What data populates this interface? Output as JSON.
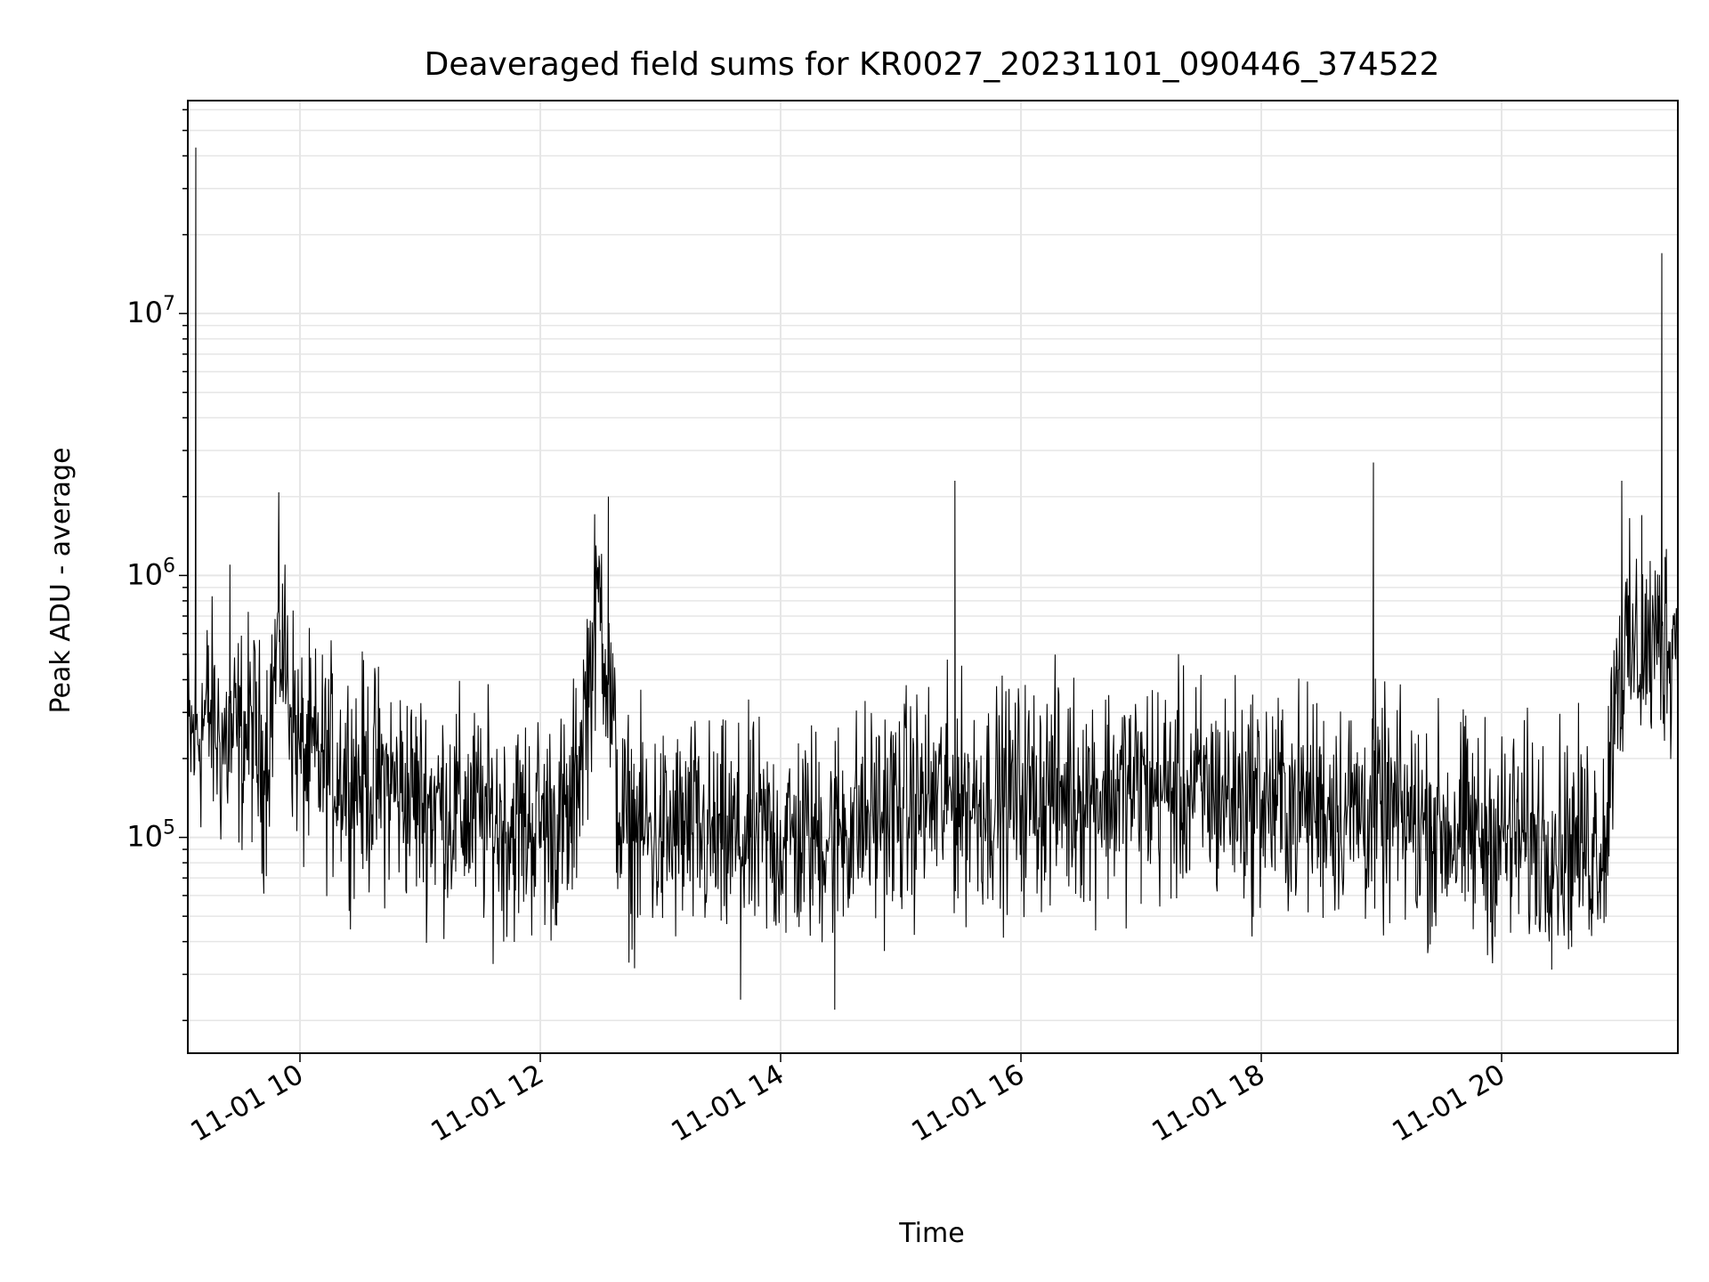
{
  "chart_data": {
    "type": "line",
    "title": "Deaveraged field sums for KR0027_20231101_090446_374522",
    "xlabel": "Time",
    "ylabel": "Peak ADU - average",
    "x_scale": "time",
    "y_scale": "log",
    "xlim": [
      "2023-11-01T09:04:00",
      "2023-11-01T21:28:00"
    ],
    "ylim": [
      15000,
      65000000
    ],
    "x_ticks": [
      "2023-11-01T10:00",
      "2023-11-01T12:00",
      "2023-11-01T14:00",
      "2023-11-01T16:00",
      "2023-11-01T18:00",
      "2023-11-01T20:00"
    ],
    "x_tick_labels": [
      "11-01 10",
      "11-01 12",
      "11-01 14",
      "11-01 16",
      "11-01 18",
      "11-01 20"
    ],
    "y_ticks": [
      100000,
      1000000,
      10000000
    ],
    "y_tick_labels": [
      {
        "base": "10",
        "exp": "5"
      },
      {
        "base": "10",
        "exp": "6"
      },
      {
        "base": "10",
        "exp": "7"
      }
    ],
    "grid": true,
    "line_color": "#000000",
    "grid_color": "#e6e6e6",
    "series": [
      {
        "x": [
          "2023-11-01T09:04",
          "2023-11-01T09:08",
          "2023-11-01T09:12",
          "2023-11-01T09:15",
          "2023-11-01T09:20",
          "2023-11-01T09:25",
          "2023-11-01T09:30",
          "2023-11-01T09:36",
          "2023-11-01T09:42",
          "2023-11-01T09:50",
          "2023-11-01T10:00",
          "2023-11-01T10:15",
          "2023-11-01T10:30",
          "2023-11-01T10:45",
          "2023-11-01T11:00",
          "2023-11-01T11:15",
          "2023-11-01T11:30",
          "2023-11-01T11:45",
          "2023-11-01T12:00",
          "2023-11-01T12:15",
          "2023-11-01T12:30",
          "2023-11-01T12:34",
          "2023-11-01T12:40",
          "2023-11-01T13:00",
          "2023-11-01T13:15",
          "2023-11-01T13:30",
          "2023-11-01T13:40",
          "2023-11-01T13:45",
          "2023-11-01T14:00",
          "2023-11-01T14:15",
          "2023-11-01T14:27",
          "2023-11-01T14:45",
          "2023-11-01T15:00",
          "2023-11-01T15:15",
          "2023-11-01T15:27",
          "2023-11-01T15:45",
          "2023-11-01T16:00",
          "2023-11-01T16:15",
          "2023-11-01T16:30",
          "2023-11-01T16:45",
          "2023-11-01T17:00",
          "2023-11-01T17:15",
          "2023-11-01T17:30",
          "2023-11-01T17:45",
          "2023-11-01T18:00",
          "2023-11-01T18:15",
          "2023-11-01T18:30",
          "2023-11-01T18:45",
          "2023-11-01T18:56",
          "2023-11-01T19:10",
          "2023-11-01T19:25",
          "2023-11-01T19:40",
          "2023-11-01T19:55",
          "2023-11-01T20:10",
          "2023-11-01T20:25",
          "2023-11-01T20:40",
          "2023-11-01T20:52",
          "2023-11-01T20:57",
          "2023-11-01T21:00",
          "2023-11-01T21:06",
          "2023-11-01T21:10",
          "2023-11-01T21:18",
          "2023-11-01T21:20",
          "2023-11-01T21:27"
        ],
        "y": [
          220000,
          43000000,
          280000,
          300000,
          230000,
          1100000,
          240000,
          260000,
          180000,
          620000,
          200000,
          190000,
          170000,
          160000,
          140000,
          130000,
          120000,
          110000,
          115000,
          110000,
          900000,
          2000000,
          110000,
          100000,
          105000,
          95000,
          24000,
          100000,
          98000,
          100000,
          22000,
          120000,
          130000,
          140000,
          2300000,
          140000,
          145000,
          150000,
          150000,
          150000,
          155000,
          150000,
          150000,
          145000,
          140000,
          135000,
          135000,
          130000,
          2700000,
          120000,
          110000,
          105000,
          100000,
          100000,
          100000,
          95000,
          100000,
          450000,
          2300000,
          500000,
          1700000,
          550000,
          17000000,
          600000
        ]
      }
    ]
  }
}
